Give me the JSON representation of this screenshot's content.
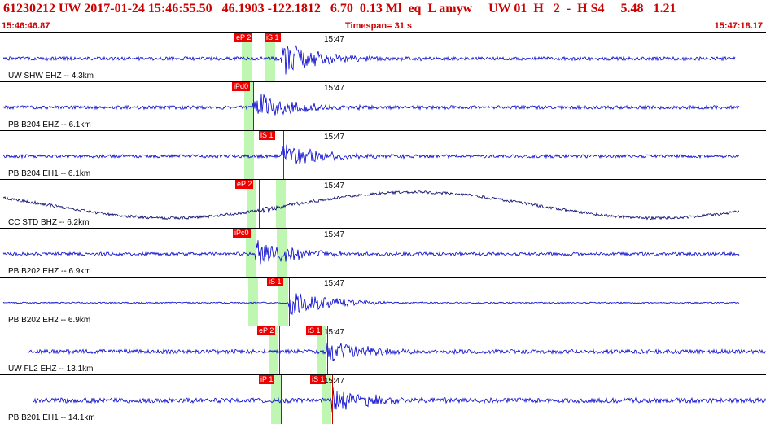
{
  "header": {
    "event_line": "61230212 UW 2017-01-24 15:46:55.50   46.1903 -122.1812   6.70  0.13 Ml  eq  L amyw     UW 01  H   2  -  H S4     5.48   1.21",
    "start_time": "15:46:46.87",
    "timespan": "Timespan=  31 s",
    "end_time": "15:47:18.17"
  },
  "colors": {
    "trace": "#0000cc",
    "trace_dark": "#000066",
    "pick": "#ee0000",
    "band": "#b8f5a8",
    "header_text": "#cc0000"
  },
  "channels": [
    {
      "label": "UW SHW EHZ -- 4.3km",
      "minute": "15:47",
      "picks": [
        {
          "label": "eP 2"
        },
        {
          "label": "iS 1"
        }
      ]
    },
    {
      "label": "PB B204 EHZ -- 6.1km",
      "minute": "15:47",
      "picks": [
        {
          "label": "iPd0"
        }
      ]
    },
    {
      "label": "PB B204 EH1 -- 6.1km",
      "minute": "15:47",
      "picks": [
        {
          "label": "iS 1"
        }
      ]
    },
    {
      "label": "CC STD BHZ -- 6.2km",
      "minute": "15:47",
      "picks": [
        {
          "label": "eP 2"
        }
      ]
    },
    {
      "label": "PB B202 EHZ -- 6.9km",
      "minute": "15:47",
      "picks": [
        {
          "label": "iPc0"
        }
      ]
    },
    {
      "label": "PB B202 EH2 -- 6.9km",
      "minute": "15:47",
      "picks": [
        {
          "label": "iS 1"
        }
      ]
    },
    {
      "label": "UW FL2 EHZ -- 13.1km",
      "minute": "15:47",
      "picks": [
        {
          "label": "eP 2"
        },
        {
          "label": "iS 1"
        }
      ]
    },
    {
      "label": "PB B201 EH1 -- 14.1km",
      "minute": "15:47",
      "picks": [
        {
          "label": "iP 1"
        },
        {
          "label": "iS 1"
        }
      ]
    }
  ]
}
